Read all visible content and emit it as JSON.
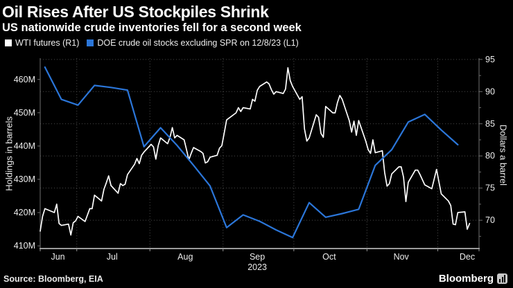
{
  "header": {
    "title": "Oil Rises After US Stockpiles Shrink",
    "subtitle": "US nationwide crude inventories fell for a second week"
  },
  "legend": [
    {
      "label": "WTI futures (R1)",
      "color": "#ffffff"
    },
    {
      "label": "DOE crude oil stocks excluding SPR on 12/8/23 (L1)",
      "color": "#2b76d9"
    }
  ],
  "footer": {
    "source": "Source: Bloomberg, EIA",
    "brand": "Bloomberg",
    "brand_icon": "bar-chart-icon"
  },
  "colors": {
    "background": "#000000",
    "text": "#ffffff",
    "tick_text": "#ededed",
    "grid": "#4a4a4a",
    "side_axis": "#6f6f6f",
    "bottom_axis": "#9a9a9a",
    "wti_line": "#ffffff",
    "doe_line": "#2b76d9"
  },
  "chart_data": {
    "type": "line",
    "title": "Oil Rises After US Stockpiles Shrink",
    "subtitle": "US nationwide crude inventories fell for a second week",
    "grid": "dotted",
    "legend_position": "top-left",
    "x_axis": {
      "start_date": "2023-06-14",
      "unit": "days since start date",
      "total_days": 186,
      "month_ticks_d": [
        15.5,
        46.5,
        77.5,
        107.5,
        138.5,
        168.5
      ],
      "end_ticks_d": [
        0,
        186
      ],
      "labels": [
        {
          "text": "Jun",
          "d": 7.5
        },
        {
          "text": "Jul",
          "d": 30.5
        },
        {
          "text": "Aug",
          "d": 61.5
        },
        {
          "text": "Sep",
          "d": 92
        },
        {
          "text": "Oct",
          "d": 122.5
        },
        {
          "text": "Nov",
          "d": 153
        },
        {
          "text": "Dec",
          "d": 181
        }
      ],
      "year_label": {
        "text": "2023",
        "d": 92
      }
    },
    "left_axis": {
      "label": "Holdings in barrels",
      "unit": "million barrels",
      "min": 409.2,
      "max": 466.4,
      "ticks": [
        {
          "v": 460,
          "label": "460M"
        },
        {
          "v": 450,
          "label": "450M"
        },
        {
          "v": 440,
          "label": "440M"
        },
        {
          "v": 430,
          "label": "430M"
        },
        {
          "v": 420,
          "label": "420M"
        },
        {
          "v": 410,
          "label": "410M"
        }
      ]
    },
    "right_axis": {
      "label": "Dollars a barrel",
      "unit": "USD per barrel",
      "min": 65.6,
      "max": 95.2,
      "ticks": [
        {
          "v": 95,
          "label": "95"
        },
        {
          "v": 90,
          "label": "90"
        },
        {
          "v": 85,
          "label": "85"
        },
        {
          "v": 80,
          "label": "80"
        },
        {
          "v": 75,
          "label": "75"
        },
        {
          "v": 70,
          "label": "70"
        }
      ],
      "minor_ticks": [
        92.5,
        87.5,
        82.5,
        77.5,
        72.5,
        67.5
      ]
    },
    "gridline_values_right_axis": [
      95,
      90,
      85,
      80,
      75,
      70
    ],
    "series": [
      {
        "name": "WTI futures (R1)",
        "axis": "right",
        "color": "#ffffff",
        "stroke_width": 1.7,
        "points": [
          [
            0,
            68.3
          ],
          [
            1,
            70.6
          ],
          [
            2,
            71.8
          ],
          [
            6,
            71.2
          ],
          [
            7,
            72.5
          ],
          [
            8,
            69.5
          ],
          [
            9,
            69.2
          ],
          [
            12,
            69.4
          ],
          [
            13,
            67.7
          ],
          [
            14,
            69.6
          ],
          [
            15,
            69.9
          ],
          [
            16,
            70.6
          ],
          [
            19,
            69.8
          ],
          [
            21,
            71.8
          ],
          [
            22,
            71.8
          ],
          [
            23,
            73.9
          ],
          [
            26,
            73.0
          ],
          [
            27,
            74.8
          ],
          [
            28,
            75.8
          ],
          [
            29,
            76.9
          ],
          [
            30,
            75.4
          ],
          [
            33,
            74.2
          ],
          [
            34,
            75.7
          ],
          [
            35,
            75.4
          ],
          [
            36,
            75.6
          ],
          [
            37,
            77.1
          ],
          [
            40,
            78.7
          ],
          [
            41,
            79.6
          ],
          [
            42,
            78.8
          ],
          [
            43,
            80.1
          ],
          [
            44,
            80.6
          ],
          [
            47,
            81.8
          ],
          [
            48,
            81.4
          ],
          [
            49,
            79.5
          ],
          [
            50,
            81.6
          ],
          [
            51,
            82.8
          ],
          [
            54,
            81.9
          ],
          [
            55,
            82.9
          ],
          [
            56,
            84.4
          ],
          [
            57,
            82.8
          ],
          [
            58,
            83.2
          ],
          [
            61,
            82.5
          ],
          [
            62,
            81.0
          ],
          [
            63,
            79.4
          ],
          [
            64,
            80.4
          ],
          [
            65,
            81.3
          ],
          [
            68,
            80.7
          ],
          [
            69,
            80.4
          ],
          [
            70,
            78.9
          ],
          [
            71,
            79.1
          ],
          [
            72,
            79.8
          ],
          [
            75,
            80.1
          ],
          [
            76,
            81.2
          ],
          [
            77,
            81.6
          ],
          [
            78,
            83.6
          ],
          [
            79,
            85.6
          ],
          [
            83,
            86.7
          ],
          [
            84,
            87.5
          ],
          [
            85,
            86.9
          ],
          [
            86,
            87.5
          ],
          [
            89,
            87.3
          ],
          [
            90,
            88.8
          ],
          [
            91,
            88.5
          ],
          [
            92,
            90.2
          ],
          [
            93,
            90.8
          ],
          [
            96,
            91.5
          ],
          [
            97,
            91.2
          ],
          [
            98,
            90.3
          ],
          [
            99,
            89.6
          ],
          [
            100,
            90.0
          ],
          [
            103,
            89.7
          ],
          [
            104,
            90.4
          ],
          [
            105,
            93.7
          ],
          [
            106,
            91.7
          ],
          [
            107,
            90.8
          ],
          [
            110,
            88.8
          ],
          [
            111,
            89.2
          ],
          [
            112,
            84.2
          ],
          [
            113,
            82.3
          ],
          [
            114,
            82.8
          ],
          [
            117,
            86.4
          ],
          [
            118,
            86.0
          ],
          [
            119,
            83.5
          ],
          [
            120,
            82.9
          ],
          [
            121,
            87.7
          ],
          [
            124,
            86.7
          ],
          [
            125,
            86.7
          ],
          [
            126,
            88.3
          ],
          [
            127,
            89.4
          ],
          [
            128,
            88.8
          ],
          [
            131,
            85.5
          ],
          [
            132,
            83.7
          ],
          [
            133,
            85.4
          ],
          [
            134,
            83.2
          ],
          [
            135,
            85.5
          ],
          [
            138,
            82.3
          ],
          [
            139,
            81.0
          ],
          [
            140,
            80.4
          ],
          [
            141,
            82.5
          ],
          [
            142,
            80.5
          ],
          [
            145,
            80.8
          ],
          [
            146,
            77.4
          ],
          [
            147,
            75.3
          ],
          [
            148,
            75.7
          ],
          [
            149,
            77.2
          ],
          [
            152,
            78.3
          ],
          [
            153,
            78.3
          ],
          [
            154,
            76.7
          ],
          [
            155,
            72.9
          ],
          [
            156,
            75.9
          ],
          [
            159,
            77.8
          ],
          [
            160,
            77.8
          ],
          [
            161,
            77.1
          ],
          [
            163,
            75.5
          ],
          [
            166,
            74.9
          ],
          [
            167,
            76.4
          ],
          [
            168,
            77.9
          ],
          [
            169,
            76.0
          ],
          [
            170,
            74.1
          ],
          [
            173,
            73.0
          ],
          [
            174,
            72.3
          ],
          [
            175,
            69.4
          ],
          [
            176,
            69.3
          ],
          [
            177,
            71.2
          ],
          [
            180,
            71.3
          ],
          [
            181,
            68.6
          ],
          [
            182,
            69.5
          ]
        ]
      },
      {
        "name": "DOE crude oil stocks excluding SPR on 12/8/23 (L1)",
        "axis": "left",
        "color": "#2b76d9",
        "stroke_width": 2.2,
        "points": [
          [
            2,
            463.7
          ],
          [
            9,
            454.0
          ],
          [
            16,
            452.3
          ],
          [
            23,
            458.2
          ],
          [
            30,
            457.6
          ],
          [
            37,
            456.8
          ],
          [
            44,
            439.8
          ],
          [
            51,
            445.5
          ],
          [
            58,
            440.2
          ],
          [
            65,
            434.2
          ],
          [
            72,
            428.0
          ],
          [
            79,
            415.5
          ],
          [
            86,
            419.3
          ],
          [
            93,
            417.4
          ],
          [
            100,
            414.8
          ],
          [
            107,
            412.5
          ],
          [
            114,
            423.0
          ],
          [
            121,
            418.6
          ],
          [
            128,
            419.7
          ],
          [
            135,
            421.0
          ],
          [
            142,
            434.2
          ],
          [
            149,
            438.9
          ],
          [
            156,
            447.2
          ],
          [
            163,
            449.5
          ],
          [
            170,
            444.8
          ],
          [
            177,
            440.4
          ]
        ]
      }
    ]
  }
}
